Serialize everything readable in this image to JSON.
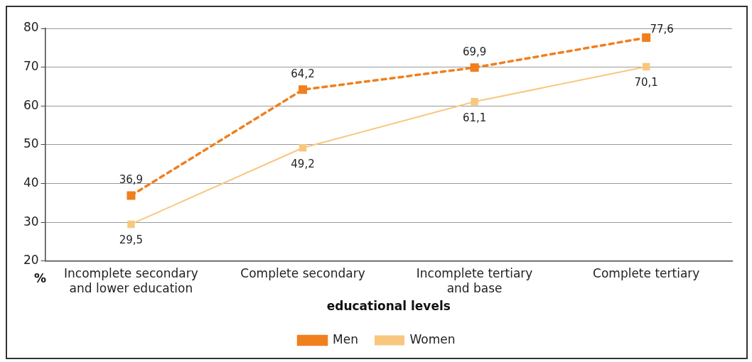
{
  "chart_data": {
    "type": "line",
    "xlabel": "educational levels",
    "ylabel": "%",
    "categories": [
      "Incomplete secondary and lower education",
      "Complete secondary",
      "Incomplete tertiary and base",
      "Complete tertiary"
    ],
    "series": [
      {
        "name": "Men",
        "color": "#f07f1e",
        "values": [
          36.9,
          64.2,
          69.9,
          77.6
        ],
        "value_labels": [
          "36,9",
          "64,2",
          "69,9",
          "77,6"
        ],
        "line_style": "dashed"
      },
      {
        "name": "Women",
        "color": "#f8c77e",
        "values": [
          29.5,
          49.2,
          61.1,
          70.1
        ],
        "value_labels": [
          "29,5",
          "49,2",
          "61,1",
          "70,1"
        ],
        "line_style": "solid"
      }
    ],
    "ylim": [
      20,
      80
    ],
    "yticks": [
      20,
      30,
      40,
      50,
      60,
      70,
      80
    ],
    "grid": "y",
    "legend": "bottom",
    "marker": "square"
  }
}
